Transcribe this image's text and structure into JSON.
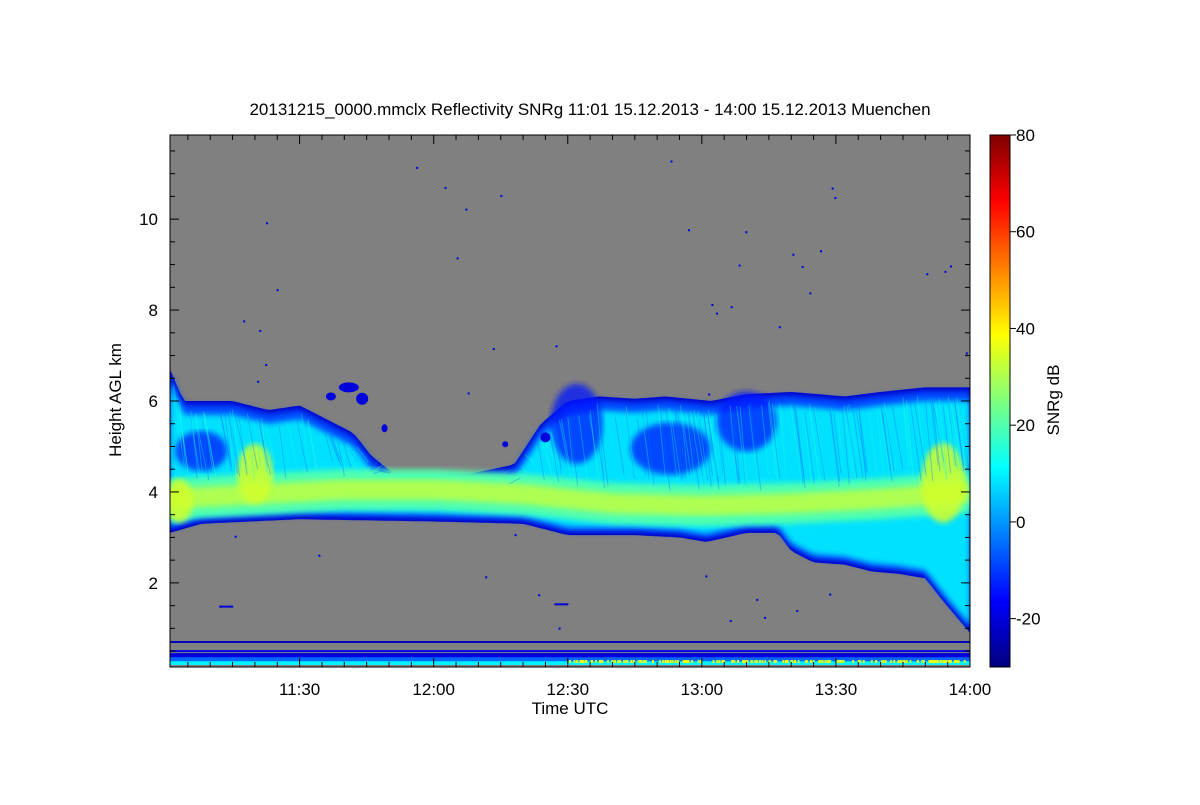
{
  "chart_data": {
    "type": "heatmap",
    "title": "20131215_0000.mmclx Reflectivity SNRg   11:01 15.12.2013 - 14:00 15.12.2013 Muenchen",
    "xlabel": "Time UTC",
    "ylabel": "Height AGL km",
    "x_range_minutes": [
      661,
      840
    ],
    "x_ticks": [
      {
        "minute": 690,
        "label": "11:30"
      },
      {
        "minute": 720,
        "label": "12:00"
      },
      {
        "minute": 750,
        "label": "12:30"
      },
      {
        "minute": 780,
        "label": "13:00"
      },
      {
        "minute": 810,
        "label": "13:30"
      },
      {
        "minute": 840,
        "label": "14:00"
      }
    ],
    "x_minor_step_minutes": 5,
    "y_range_km": [
      0.15,
      11.85
    ],
    "y_ticks": [
      {
        "value": 2,
        "label": "2"
      },
      {
        "value": 4,
        "label": "4"
      },
      {
        "value": 6,
        "label": "6"
      },
      {
        "value": 8,
        "label": "8"
      },
      {
        "value": 10,
        "label": "10"
      }
    ],
    "y_minor_step_km": 0.5,
    "background_color": "#808080",
    "colorbar": {
      "label": "SNRg dB",
      "range": [
        -30,
        80
      ],
      "ticks": [
        {
          "value": -20,
          "label": "-20"
        },
        {
          "value": 0,
          "label": "0"
        },
        {
          "value": 20,
          "label": "20"
        },
        {
          "value": 40,
          "label": "40"
        },
        {
          "value": 60,
          "label": "60"
        },
        {
          "value": 80,
          "label": "80"
        }
      ],
      "colormap": [
        "#00007f",
        "#0000ff",
        "#007fff",
        "#00ffff",
        "#7fff7f",
        "#ffff00",
        "#ff7f00",
        "#ff0000",
        "#7f0000"
      ]
    },
    "cloud_layer": {
      "description_units": "time in minutes after 00:00 UTC, heights in km AGL",
      "base_km": [
        {
          "t": 661,
          "h": 3.1
        },
        {
          "t": 668,
          "h": 3.3
        },
        {
          "t": 690,
          "h": 3.4
        },
        {
          "t": 720,
          "h": 3.35
        },
        {
          "t": 740,
          "h": 3.3
        },
        {
          "t": 750,
          "h": 3.05
        },
        {
          "t": 765,
          "h": 3.05
        },
        {
          "t": 775,
          "h": 3.0
        },
        {
          "t": 781,
          "h": 2.9
        },
        {
          "t": 790,
          "h": 3.1
        },
        {
          "t": 797,
          "h": 3.1
        },
        {
          "t": 800,
          "h": 2.7
        },
        {
          "t": 805,
          "h": 2.45
        },
        {
          "t": 812,
          "h": 2.4
        },
        {
          "t": 818,
          "h": 2.25
        },
        {
          "t": 824,
          "h": 2.2
        },
        {
          "t": 830,
          "h": 2.1
        },
        {
          "t": 834,
          "h": 1.6
        },
        {
          "t": 840,
          "h": 0.9
        }
      ],
      "top_km": [
        {
          "t": 661,
          "h": 6.7
        },
        {
          "t": 664,
          "h": 6.0
        },
        {
          "t": 670,
          "h": 6.0
        },
        {
          "t": 675,
          "h": 6.0
        },
        {
          "t": 683,
          "h": 5.8
        },
        {
          "t": 690,
          "h": 5.9
        },
        {
          "t": 696,
          "h": 5.6
        },
        {
          "t": 702,
          "h": 5.3
        },
        {
          "t": 706,
          "h": 4.8
        },
        {
          "t": 711,
          "h": 4.4
        },
        {
          "t": 728,
          "h": 4.4
        },
        {
          "t": 738,
          "h": 4.6
        },
        {
          "t": 744,
          "h": 5.5
        },
        {
          "t": 750,
          "h": 6.0
        },
        {
          "t": 757,
          "h": 6.1
        },
        {
          "t": 765,
          "h": 6.05
        },
        {
          "t": 772,
          "h": 6.1
        },
        {
          "t": 782,
          "h": 6.0
        },
        {
          "t": 790,
          "h": 6.15
        },
        {
          "t": 800,
          "h": 6.2
        },
        {
          "t": 812,
          "h": 6.1
        },
        {
          "t": 820,
          "h": 6.2
        },
        {
          "t": 830,
          "h": 6.3
        },
        {
          "t": 840,
          "h": 6.3
        }
      ],
      "core_km": [
        {
          "t": 661,
          "h": 3.85
        },
        {
          "t": 680,
          "h": 3.95
        },
        {
          "t": 700,
          "h": 4.05
        },
        {
          "t": 720,
          "h": 4.05
        },
        {
          "t": 740,
          "h": 3.95
        },
        {
          "t": 760,
          "h": 3.75
        },
        {
          "t": 780,
          "h": 3.7
        },
        {
          "t": 800,
          "h": 3.75
        },
        {
          "t": 820,
          "h": 3.85
        },
        {
          "t": 840,
          "h": 4.0
        }
      ]
    },
    "ground_clutter_km": [
      0.25,
      0.4,
      0.5,
      0.7
    ]
  }
}
